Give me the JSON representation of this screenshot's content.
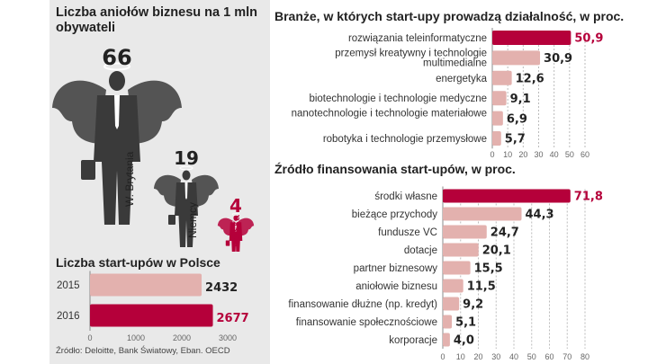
{
  "colors": {
    "highlight": "#b5003a",
    "bar": "#e3b1ae",
    "panel": "#e9e9e9",
    "angel": "#3a3a3a",
    "angel_pl": "#b5003a"
  },
  "angels": {
    "title": "Liczba aniołów biznesu na 1 mln obywateli",
    "items": [
      {
        "country": "W. Brytania",
        "value": "66"
      },
      {
        "country": "Niemcy",
        "value": "19"
      },
      {
        "country": "Polska",
        "value": "4"
      }
    ]
  },
  "source": "Źródło: Deloitte, Bank Światowy, Eban. OECD",
  "chart_data": [
    {
      "type": "bar",
      "orientation": "horizontal",
      "title": "Liczba start-upów w Polsce",
      "categories": [
        "2015",
        "2016"
      ],
      "values": [
        2432,
        2677
      ],
      "xlim": [
        0,
        3000
      ],
      "ticks": [
        "0",
        "1000",
        "2000",
        "3000"
      ],
      "highlight": [
        1
      ]
    },
    {
      "type": "bar",
      "orientation": "horizontal",
      "title": "Branże, w których start-upy prowadzą działalność, w proc.",
      "categories": [
        "rozwiązania teleinformatyczne",
        "przemysł kreatywny i technologie multimedialne",
        "energetyka",
        "biotechnologie i technologie medyczne",
        "nanotechnologie i technologie materiałowe",
        "robotyka i technologie przemysłowe"
      ],
      "values": [
        50.9,
        30.9,
        12.6,
        9.1,
        6.9,
        5.7
      ],
      "labels": [
        "50,9",
        "30,9",
        "12,6",
        "9,1",
        "6,9",
        "5,7"
      ],
      "xlim": [
        0,
        60
      ],
      "ticks": [
        "0",
        "10",
        "20",
        "30",
        "40",
        "50",
        "60"
      ],
      "grid": true,
      "highlight": [
        0
      ]
    },
    {
      "type": "bar",
      "orientation": "horizontal",
      "title": "Źródło finansowania start-upów, w proc.",
      "categories": [
        "środki własne",
        "bieżące przychody",
        "fundusze VC",
        "dotacje",
        "partner biznesowy",
        "aniołowie biznesu",
        "finansowanie dłużne (np. kredyt)",
        "finansowanie społecznościowe",
        "korporacje"
      ],
      "values": [
        71.8,
        44.3,
        24.7,
        20.1,
        15.5,
        11.5,
        9.2,
        5.1,
        4.0
      ],
      "labels": [
        "71,8",
        "44,3",
        "24,7",
        "20,1",
        "15,5",
        "11,5",
        "9,2",
        "5,1",
        "4,0"
      ],
      "xlim": [
        0,
        80
      ],
      "ticks": [
        "0",
        "10",
        "20",
        "30",
        "40",
        "50",
        "60",
        "70",
        "80"
      ],
      "grid": true,
      "highlight": [
        0
      ]
    }
  ]
}
